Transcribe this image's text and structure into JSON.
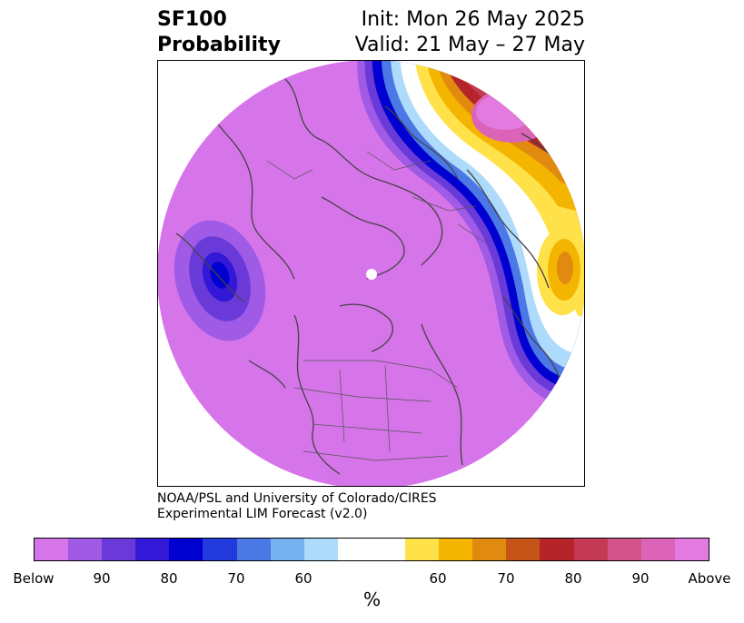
{
  "header": {
    "title_line1": "SF100",
    "title_line2": "Probability",
    "init_text": "Init: Mon 26 May 2025",
    "valid_text": "Valid: 21 May – 27 May"
  },
  "credit": {
    "line1": "NOAA/PSL and University of Colorado/CIRES",
    "line2": "Experimental LIM Forecast (v2.0)"
  },
  "colorbar": {
    "segments": [
      {
        "color": "#d674ea"
      },
      {
        "color": "#9f5ae6"
      },
      {
        "color": "#6a3ad9"
      },
      {
        "color": "#3418d7"
      },
      {
        "color": "#0000d0"
      },
      {
        "color": "#2239db"
      },
      {
        "color": "#4c78e6"
      },
      {
        "color": "#74b2f1"
      },
      {
        "color": "#aedbfb"
      },
      {
        "color": "#ffffff"
      },
      {
        "color": "#ffe149"
      },
      {
        "color": "#f3b500"
      },
      {
        "color": "#e08a10"
      },
      {
        "color": "#c65318"
      },
      {
        "color": "#b42429"
      },
      {
        "color": "#c43a55"
      },
      {
        "color": "#d4548a"
      },
      {
        "color": "#dc64b8"
      },
      {
        "color": "#e27ae0"
      }
    ],
    "ticks": [
      {
        "label": "Below"
      },
      {
        "label": "90"
      },
      {
        "label": "80"
      },
      {
        "label": "70"
      },
      {
        "label": "60"
      },
      {
        "label": "60"
      },
      {
        "label": "70"
      },
      {
        "label": "80"
      },
      {
        "label": "90"
      },
      {
        "label": "Above"
      }
    ],
    "unit_label": "%"
  },
  "map": {
    "background_color": "#d674ea",
    "pole_color": "#ffffff",
    "coastline_color": "#444444"
  }
}
